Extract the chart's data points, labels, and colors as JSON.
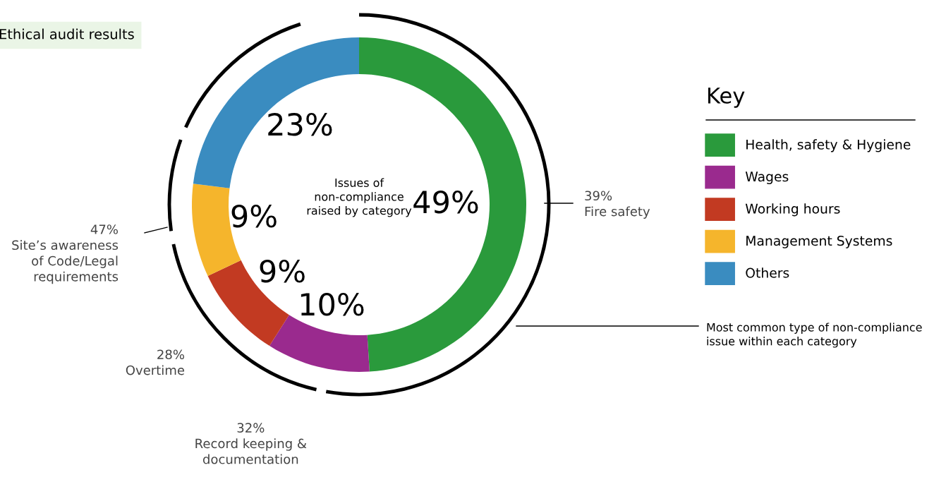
{
  "chart_data": {
    "type": "donut",
    "title": "Ethical audit results",
    "categories": [
      "Health, safety & Hygiene",
      "Wages",
      "Working hours",
      "Management Systems",
      "Others"
    ],
    "values": [
      49,
      10,
      9,
      9,
      23
    ],
    "colors": [
      "#2a9a3c",
      "#9a2a8e",
      "#c23a22",
      "#f5b52c",
      "#3a8cc0"
    ],
    "value_labels": [
      "49%",
      "10%",
      "9%",
      "9%",
      "23%"
    ],
    "legend": "right",
    "legend_title": "Key",
    "annotations": [
      "Issues of\nnon-compliance\nraised by category",
      "39%\nFire safety",
      "47%\nSite’s awareness\nof Code/Legal\nrequirements",
      "28%\nOvertime",
      "32%\nRecord keeping &\ndocumentation",
      "Most common type of non-compliance\nissue within each category"
    ]
  }
}
